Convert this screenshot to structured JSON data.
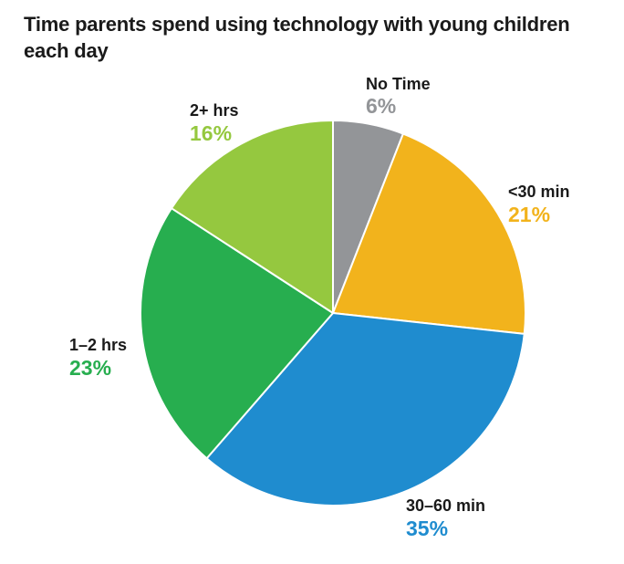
{
  "chart_data": {
    "type": "pie",
    "title": "Time parents spend using technology with young children each day",
    "slices": [
      {
        "label": "No Time",
        "value": 6,
        "display": "6%",
        "color": "#939598",
        "label_color": "#939598"
      },
      {
        "label": "<30 min",
        "value": 21,
        "display": "21%",
        "color": "#F2B31C",
        "label_color": "#F2B31C"
      },
      {
        "label": "30–60 min",
        "value": 35,
        "display": "35%",
        "color": "#1F8CCF",
        "label_color": "#1F8CCF"
      },
      {
        "label": "1–2 hrs",
        "value": 23,
        "display": "23%",
        "color": "#27AE4F",
        "label_color": "#27AE4F"
      },
      {
        "label": "2+ hrs",
        "value": 16,
        "display": "16%",
        "color": "#95C83F",
        "label_color": "#95C83F"
      }
    ],
    "start": "12 o'clock",
    "direction": "clockwise"
  }
}
